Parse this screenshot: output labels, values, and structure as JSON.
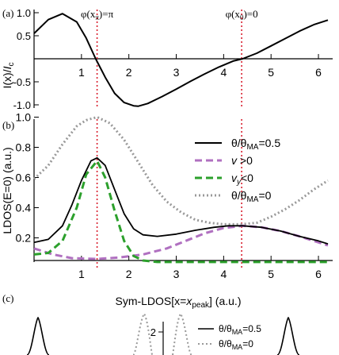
{
  "chart_data": [
    {
      "panel_label": "(a)",
      "type": "line",
      "ylabel": "I(x)/I_c",
      "xlim": [
        0,
        6.3
      ],
      "ylim": [
        -1.1,
        1.1
      ],
      "xticks": [
        1,
        2,
        3,
        4,
        5,
        6
      ],
      "yticks": [
        -1.0,
        -0.5,
        0.5,
        1.0
      ],
      "ytick_labels": [
        "-1.0",
        "-0.5",
        "0.5",
        "1.0"
      ],
      "series": [
        {
          "color": "#000000",
          "x": [
            0,
            0.3,
            0.6,
            0.9,
            1.1,
            1.3,
            1.5,
            1.7,
            1.9,
            2.1,
            2.2,
            2.4,
            2.7,
            3.0,
            3.3,
            3.6,
            3.9,
            4.2,
            4.4,
            4.7,
            5.0,
            5.3,
            5.6,
            5.9,
            6.2
          ],
          "y": [
            0.55,
            0.85,
            0.98,
            0.8,
            0.45,
            0.0,
            -0.4,
            -0.75,
            -0.95,
            -1.02,
            -1.03,
            -0.97,
            -0.82,
            -0.66,
            -0.49,
            -0.33,
            -0.18,
            -0.05,
            0.0,
            0.12,
            0.28,
            0.44,
            0.6,
            0.74,
            0.84
          ]
        }
      ],
      "vlines": [
        {
          "x": 1.33,
          "label_main": "φ(x",
          "label_sub": "π",
          "label_end": ")=π",
          "color": "#d91f2e"
        },
        {
          "x": 4.38,
          "label_main": "φ(x",
          "label_sub": "0",
          "label_end": ")=0",
          "color": "#d91f2e"
        }
      ]
    },
    {
      "panel_label": "(b)",
      "type": "line",
      "ylabel": "LDOS(E=0) (a.u.)",
      "xlim": [
        0,
        6.3
      ],
      "ylim": [
        0.05,
        1.05
      ],
      "xticks": [
        1,
        2,
        3,
        4,
        5,
        6
      ],
      "yticks": [
        0.2,
        0.4,
        0.6,
        0.8,
        1.0
      ],
      "ytick_labels": [
        "0.2",
        "0.4",
        "0.6",
        "0.8",
        "1.0"
      ],
      "legend_position": "top-right",
      "legend": [
        {
          "main": "θ/θ",
          "sub": "MA",
          "end": "=0.5",
          "style": "solid",
          "color": "#000000"
        },
        {
          "main": "v ",
          "sub": "",
          "end": ">0",
          "style": "dash",
          "color": "#b070c0",
          "italic": true
        },
        {
          "main": "v",
          "sub": "y",
          "end": "<0",
          "style": "dash",
          "color": "#2ca02c",
          "italic": true
        },
        {
          "main": "θ/θ",
          "sub": "MA",
          "end": "=0",
          "style": "dot",
          "color": "#999999"
        }
      ],
      "series": [
        {
          "color": "#000000",
          "style": "solid",
          "x": [
            0,
            0.3,
            0.6,
            0.8,
            1.0,
            1.2,
            1.33,
            1.5,
            1.7,
            1.9,
            2.1,
            2.3,
            2.6,
            3.0,
            3.4,
            3.8,
            4.1,
            4.4,
            4.8,
            5.2,
            5.6,
            6.0,
            6.2
          ],
          "y": [
            0.17,
            0.19,
            0.28,
            0.42,
            0.58,
            0.71,
            0.73,
            0.68,
            0.52,
            0.36,
            0.26,
            0.22,
            0.21,
            0.225,
            0.25,
            0.27,
            0.28,
            0.28,
            0.27,
            0.245,
            0.21,
            0.18,
            0.16
          ]
        },
        {
          "color": "#b070c0",
          "style": "dash",
          "x": [
            0,
            0.4,
            0.8,
            1.33,
            1.8,
            2.3,
            2.8,
            3.2,
            3.6,
            4.0,
            4.4,
            4.8,
            5.2,
            5.6,
            6.0,
            6.2
          ],
          "y": [
            0.13,
            0.09,
            0.065,
            0.06,
            0.07,
            0.09,
            0.13,
            0.18,
            0.23,
            0.265,
            0.28,
            0.27,
            0.245,
            0.21,
            0.17,
            0.15
          ]
        },
        {
          "color": "#2ca02c",
          "style": "dash",
          "x": [
            0,
            0.3,
            0.6,
            0.9,
            1.1,
            1.33,
            1.5,
            1.7,
            1.9,
            2.1,
            2.3,
            2.6,
            3.0,
            3.5,
            4.0,
            4.5,
            5.0,
            5.5,
            6.0,
            6.2
          ],
          "y": [
            0.09,
            0.1,
            0.18,
            0.4,
            0.62,
            0.71,
            0.6,
            0.38,
            0.18,
            0.08,
            0.05,
            0.04,
            0.04,
            0.04,
            0.04,
            0.04,
            0.04,
            0.04,
            0.04,
            0.04
          ]
        },
        {
          "color": "#999999",
          "style": "dot",
          "x": [
            0,
            0.3,
            0.6,
            0.9,
            1.1,
            1.33,
            1.6,
            1.9,
            2.2,
            2.5,
            2.8,
            3.1,
            3.4,
            3.7,
            4.0,
            4.38,
            4.7,
            5.0,
            5.3,
            5.6,
            5.9,
            6.2
          ],
          "y": [
            0.59,
            0.68,
            0.82,
            0.94,
            0.98,
            1.0,
            0.96,
            0.85,
            0.7,
            0.55,
            0.44,
            0.37,
            0.32,
            0.3,
            0.29,
            0.29,
            0.3,
            0.34,
            0.39,
            0.45,
            0.52,
            0.58
          ]
        }
      ],
      "vlines": [
        {
          "x": 1.33,
          "color": "#d91f2e"
        },
        {
          "x": 4.38,
          "color": "#d91f2e"
        }
      ]
    },
    {
      "panel_label": "(c)",
      "type": "line",
      "title_main": "Sym-LDOS[x=",
      "title_var": "x",
      "title_sub": "peak",
      "title_end": "] (a.u.)",
      "ytick_labels": [
        "2"
      ],
      "legend": [
        {
          "main": "θ/θ",
          "sub": "MA",
          "end": "=0.5",
          "style": "solid",
          "color": "#000000"
        },
        {
          "main": "θ/θ",
          "sub": "MA",
          "end": "=0",
          "style": "dot",
          "color": "#999999"
        }
      ]
    }
  ]
}
